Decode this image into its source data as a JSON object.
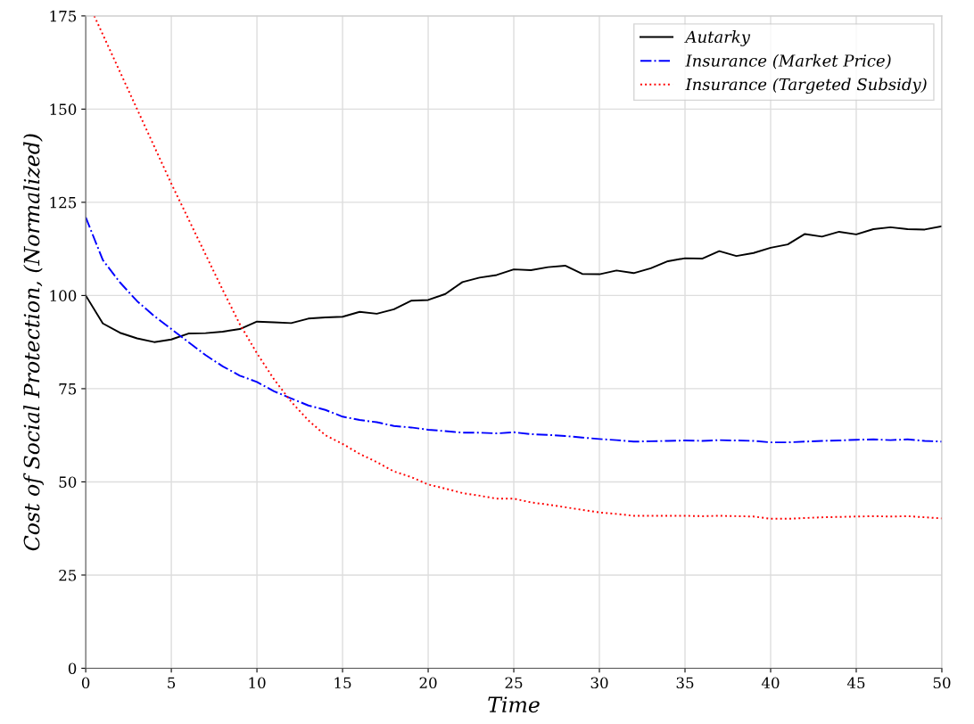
{
  "chart_data": {
    "type": "line",
    "xlabel": "Time",
    "ylabel": "Cost of Social Protection, (Normalized)",
    "x": [
      0,
      1,
      2,
      3,
      4,
      5,
      6,
      7,
      8,
      9,
      10,
      11,
      12,
      13,
      14,
      15,
      16,
      17,
      18,
      19,
      20,
      21,
      22,
      23,
      24,
      25,
      26,
      27,
      28,
      29,
      30,
      31,
      32,
      33,
      34,
      35,
      36,
      37,
      38,
      39,
      40,
      41,
      42,
      43,
      44,
      45,
      46,
      47,
      48,
      49,
      50
    ],
    "series": [
      {
        "name": "Autarky",
        "color": "#000000",
        "line_style": "solid",
        "values": [
          100,
          92.5,
          90,
          88.5,
          87.5,
          88.2,
          89.8,
          89.9,
          90.3,
          91,
          93,
          92.8,
          92.6,
          93.8,
          94.1,
          94.3,
          95.6,
          95.1,
          96.3,
          98.6,
          98.8,
          100.4,
          103.6,
          104.8,
          105.5,
          107,
          106.8,
          107.6,
          108,
          105.8,
          105.7,
          106.7,
          106,
          107.3,
          109.2,
          110,
          109.9,
          111.9,
          110.6,
          111.4,
          112.8,
          113.7,
          116.5,
          115.8,
          117.1,
          116.4,
          117.8,
          118.3,
          117.8,
          117.7,
          118.6
        ]
      },
      {
        "name": "Insurance (Market Price)",
        "color": "#0000ff",
        "line_style": "dashdot",
        "values": [
          121,
          109.5,
          103.5,
          98.5,
          94.5,
          91,
          87.5,
          84,
          81,
          78.5,
          76.8,
          74.3,
          72.4,
          70.5,
          69.3,
          67.5,
          66.6,
          66,
          65,
          64.6,
          64,
          63.6,
          63.2,
          63.2,
          63,
          63.3,
          62.8,
          62.6,
          62.3,
          61.9,
          61.5,
          61.2,
          60.8,
          60.9,
          61,
          61.1,
          61,
          61.2,
          61.1,
          61,
          60.6,
          60.6,
          60.8,
          61,
          61.1,
          61.3,
          61.4,
          61.2,
          61.4,
          61,
          60.8
        ]
      },
      {
        "name": "Insurance (Targeted Subsidy)",
        "color": "#ff0000",
        "line_style": "dotted",
        "x": [
          0.5,
          1,
          2,
          3,
          4,
          5,
          6,
          7,
          8,
          9,
          10,
          11,
          12,
          13,
          14,
          15,
          16,
          17,
          18,
          19,
          20,
          21,
          22,
          23,
          24,
          25,
          26,
          27,
          28,
          29,
          30,
          31,
          32,
          33,
          34,
          35,
          36,
          37,
          38,
          39,
          40,
          41,
          42,
          43,
          44,
          45,
          46,
          47,
          48,
          49,
          50
        ],
        "values": [
          175,
          170,
          160,
          150,
          140,
          130,
          120.5,
          111,
          101.5,
          92.3,
          84.5,
          77.5,
          71.5,
          66.5,
          62.5,
          60.2,
          57.5,
          55.3,
          52.8,
          51.3,
          49.3,
          48.2,
          47,
          46.3,
          45.5,
          45.5,
          44.5,
          43.9,
          43.2,
          42.5,
          41.8,
          41.4,
          40.9,
          40.9,
          40.9,
          40.9,
          40.8,
          40.9,
          40.8,
          40.7,
          40.1,
          40.1,
          40.3,
          40.5,
          40.6,
          40.7,
          40.8,
          40.7,
          40.8,
          40.5,
          40.2
        ]
      }
    ],
    "xlim": [
      0,
      50
    ],
    "xticks": [
      0,
      5,
      10,
      15,
      20,
      25,
      30,
      35,
      40,
      45,
      50
    ],
    "ylim": [
      0,
      175
    ],
    "yticks": [
      0,
      25,
      50,
      75,
      100,
      125,
      150,
      175
    ],
    "grid": true,
    "legend": "top right"
  }
}
